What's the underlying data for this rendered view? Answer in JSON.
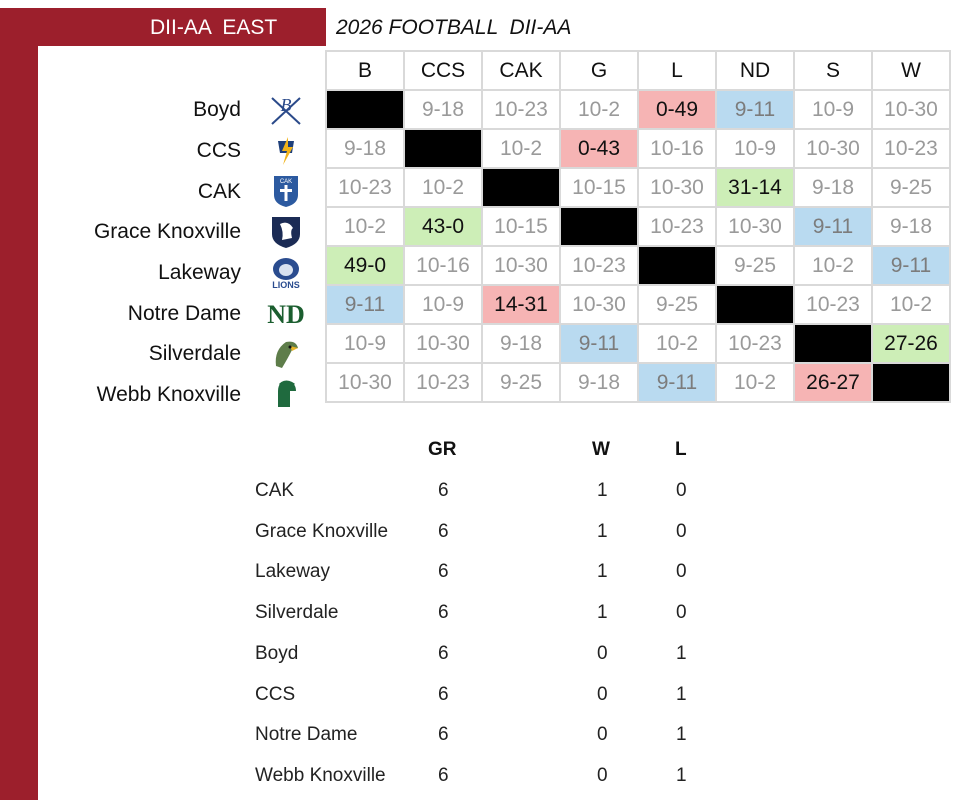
{
  "header": {
    "left_title": "DII-AA  EAST",
    "right_title": "2026 FOOTBALL  DII-AA"
  },
  "columns": [
    "B",
    "CCS",
    "CAK",
    "G",
    "L",
    "ND",
    "S",
    "W"
  ],
  "teams": [
    {
      "name": "Boyd",
      "logo": "boyd-logo",
      "cells": [
        "",
        "9-18",
        "10-23",
        "10-2",
        "0-49",
        "9-11",
        "10-9",
        "10-30"
      ]
    },
    {
      "name": "CCS",
      "logo": "ccs-logo",
      "cells": [
        "9-18",
        "",
        "10-2",
        "0-43",
        "10-16",
        "10-9",
        "10-30",
        "10-23"
      ]
    },
    {
      "name": "CAK",
      "logo": "cak-logo",
      "cells": [
        "10-23",
        "10-2",
        "",
        "10-15",
        "10-30",
        "31-14",
        "9-18",
        "9-25"
      ]
    },
    {
      "name": "Grace Knoxville",
      "logo": "grace-logo",
      "cells": [
        "10-2",
        "43-0",
        "10-15",
        "",
        "10-23",
        "10-30",
        "9-11",
        "9-18"
      ]
    },
    {
      "name": "Lakeway",
      "logo": "lakeway-lions-logo",
      "cells": [
        "49-0",
        "10-16",
        "10-30",
        "10-23",
        "",
        "9-25",
        "10-2",
        "9-11"
      ]
    },
    {
      "name": "Notre Dame",
      "logo": "notre-dame-logo",
      "cells": [
        "9-11",
        "10-9",
        "14-31",
        "10-30",
        "9-25",
        "",
        "10-23",
        "10-2"
      ]
    },
    {
      "name": "Silverdale",
      "logo": "silverdale-logo",
      "cells": [
        "10-9",
        "10-30",
        "9-18",
        "9-11",
        "10-2",
        "10-23",
        "",
        "27-26"
      ]
    },
    {
      "name": "Webb Knoxville",
      "logo": "webb-logo",
      "cells": [
        "10-30",
        "10-23",
        "9-25",
        "9-18",
        "9-11",
        "10-2",
        "26-27",
        ""
      ]
    }
  ],
  "cell_status": [
    [
      "blk",
      "",
      "",
      "",
      "l",
      "t",
      "",
      ""
    ],
    [
      "",
      "blk",
      "",
      "l",
      "",
      "",
      "",
      ""
    ],
    [
      "",
      "",
      "blk",
      "",
      "",
      "w",
      "",
      ""
    ],
    [
      "",
      "w",
      "",
      "blk",
      "",
      "",
      "t",
      ""
    ],
    [
      "w",
      "",
      "",
      "",
      "blk",
      "",
      "",
      "t"
    ],
    [
      "t",
      "",
      "l",
      "",
      "",
      "blk",
      "",
      ""
    ],
    [
      "",
      "",
      "",
      "t",
      "",
      "",
      "blk",
      "w"
    ],
    [
      "",
      "",
      "",
      "",
      "t",
      "",
      "l",
      "blk"
    ]
  ],
  "status_colors": {
    "win": "#cdeeb7",
    "loss": "#f6b4b4",
    "tbd": "#b9daf0",
    "brand": "#9c1f2c"
  },
  "standings": {
    "headers": {
      "gr": "GR",
      "w": "W",
      "l": "L"
    },
    "rows": [
      {
        "team": "CAK",
        "gr": "6",
        "w": "1",
        "l": "0"
      },
      {
        "team": "Grace Knoxville",
        "gr": "6",
        "w": "1",
        "l": "0"
      },
      {
        "team": "Lakeway",
        "gr": "6",
        "w": "1",
        "l": "0"
      },
      {
        "team": "Silverdale",
        "gr": "6",
        "w": "1",
        "l": "0"
      },
      {
        "team": "Boyd",
        "gr": "6",
        "w": "0",
        "l": "1"
      },
      {
        "team": "CCS",
        "gr": "6",
        "w": "0",
        "l": "1"
      },
      {
        "team": "Notre Dame",
        "gr": "6",
        "w": "0",
        "l": "1"
      },
      {
        "team": "Webb Knoxville",
        "gr": "6",
        "w": "0",
        "l": "1"
      }
    ]
  }
}
